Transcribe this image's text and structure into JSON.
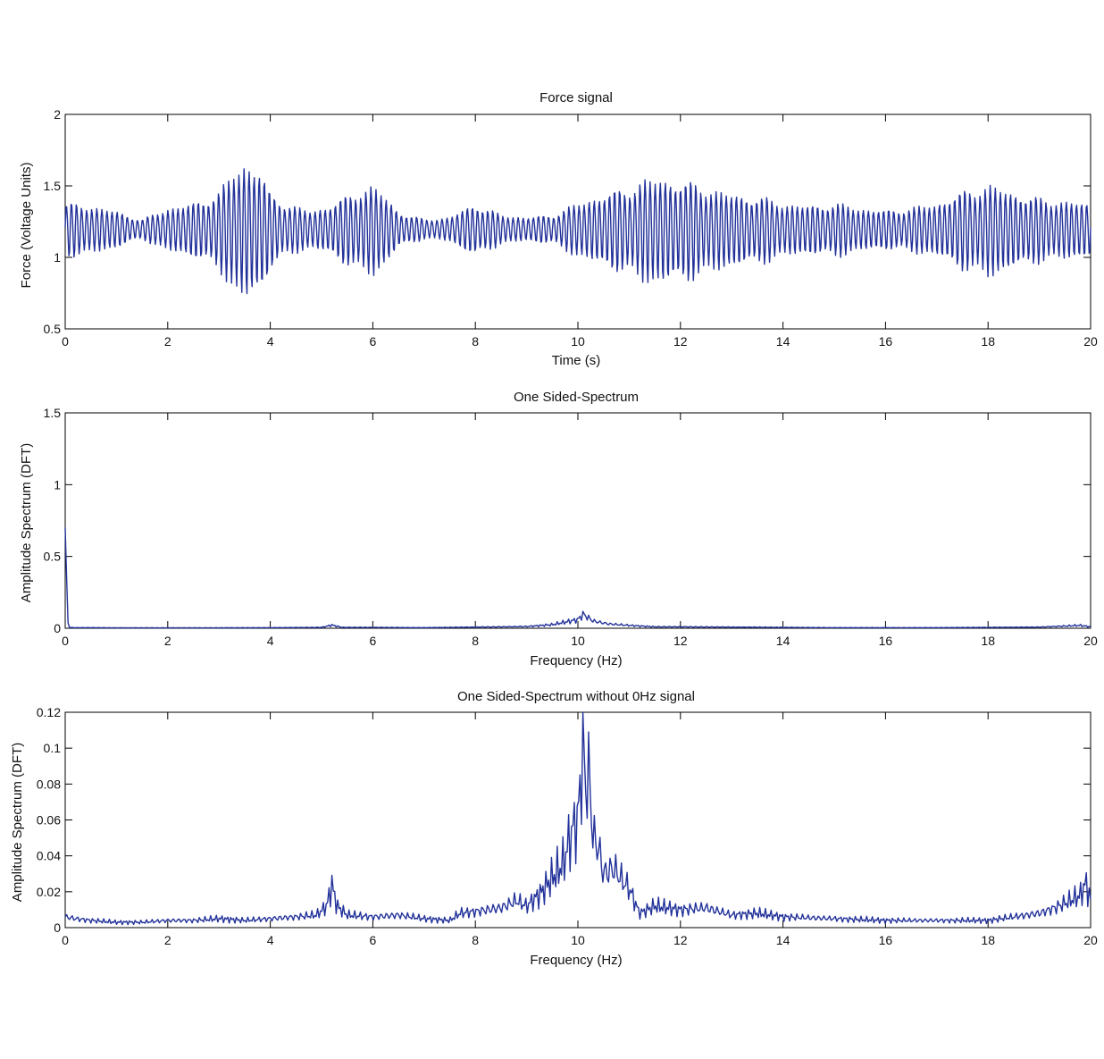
{
  "chart_data": [
    {
      "type": "line",
      "title": "Force signal",
      "xlabel": "Time (s)",
      "ylabel": "Force (Voltage Units)",
      "xlim": [
        0,
        20
      ],
      "ylim": [
        0.5,
        2
      ],
      "xticks": [
        "0",
        "2",
        "4",
        "6",
        "8",
        "10",
        "12",
        "14",
        "16",
        "18",
        "20"
      ],
      "yticks": [
        "0.5",
        "1",
        "1.5",
        "2"
      ],
      "color": "#23329a",
      "grid": false,
      "series": [
        {
          "envelope_x": [
            0,
            0.5,
            1,
            1.5,
            2,
            2.5,
            3,
            3.3,
            3.5,
            3.8,
            4,
            4.3,
            4.8,
            5,
            5.5,
            5.8,
            6,
            6.2,
            6.5,
            7,
            7.5,
            8,
            8.5,
            9,
            9.5,
            10,
            10.5,
            11,
            11.3,
            11.6,
            12,
            12.5,
            13,
            13.5,
            14,
            14.5,
            15,
            15.5,
            16,
            16.5,
            17,
            17.5,
            17.8,
            18,
            18.5,
            19,
            19.5,
            20
          ],
          "envelope_amp": [
            0.22,
            0.2,
            0.15,
            0.08,
            0.18,
            0.22,
            0.32,
            0.5,
            0.58,
            0.52,
            0.3,
            0.22,
            0.15,
            0.18,
            0.28,
            0.35,
            0.38,
            0.3,
            0.15,
            0.08,
            0.1,
            0.22,
            0.12,
            0.1,
            0.12,
            0.22,
            0.3,
            0.36,
            0.42,
            0.44,
            0.42,
            0.36,
            0.3,
            0.28,
            0.22,
            0.2,
            0.22,
            0.18,
            0.16,
            0.18,
            0.22,
            0.32,
            0.36,
            0.38,
            0.32,
            0.26,
            0.24,
            0.22
          ],
          "mean": 1.2,
          "oscillation_hz": 10.1,
          "n_points": 1400
        }
      ]
    },
    {
      "type": "line",
      "title": "One Sided-Spectrum",
      "xlabel": "Frequency (Hz)",
      "ylabel": "Amplitude Spectrum (DFT)",
      "xlim": [
        0,
        20
      ],
      "ylim": [
        0,
        1.5
      ],
      "xticks": [
        "0",
        "2",
        "4",
        "6",
        "8",
        "10",
        "12",
        "14",
        "16",
        "18",
        "20"
      ],
      "yticks": [
        "0",
        "0.5",
        "1",
        "1.5"
      ],
      "color": "#23329a",
      "grid": false,
      "series": [
        {
          "x": [
            0,
            0.03,
            0.06,
            0.1,
            0.2,
            0.5,
            1,
            2,
            3,
            4,
            5,
            5.2,
            5.4,
            6,
            7,
            8,
            9,
            9.5,
            10,
            10.1,
            10.3,
            10.6,
            11,
            11.5,
            12,
            13,
            14,
            15,
            16,
            17,
            18,
            19,
            19.8,
            20
          ],
          "y": [
            0.7,
            0.25,
            0.005,
            0.005,
            0.004,
            0.004,
            0.003,
            0.003,
            0.003,
            0.004,
            0.006,
            0.022,
            0.006,
            0.006,
            0.004,
            0.008,
            0.012,
            0.025,
            0.06,
            0.098,
            0.05,
            0.03,
            0.02,
            0.01,
            0.01,
            0.008,
            0.006,
            0.004,
            0.004,
            0.004,
            0.006,
            0.008,
            0.02,
            0.01
          ]
        }
      ]
    },
    {
      "type": "line",
      "title": "One Sided-Spectrum without 0Hz signal",
      "xlabel": "Frequency (Hz)",
      "ylabel": "Amplitude Spectrum (DFT)",
      "xlim": [
        0,
        20
      ],
      "ylim": [
        0,
        0.12
      ],
      "xticks": [
        "0",
        "2",
        "4",
        "6",
        "8",
        "10",
        "12",
        "14",
        "16",
        "18",
        "20"
      ],
      "yticks": [
        "0",
        "0.02",
        "0.04",
        "0.06",
        "0.08",
        "0.1",
        "0.12"
      ],
      "color": "#23329a",
      "grid": false,
      "series": [
        {
          "x": [
            0,
            0.2,
            0.5,
            1,
            1.5,
            2,
            2.5,
            3,
            3.5,
            4,
            4.5,
            4.9,
            5.1,
            5.2,
            5.3,
            5.5,
            6,
            6.5,
            7,
            7.5,
            7.7,
            8,
            8.5,
            8.8,
            9,
            9.3,
            9.5,
            9.7,
            9.9,
            10,
            10.05,
            10.1,
            10.15,
            10.2,
            10.3,
            10.4,
            10.5,
            10.7,
            10.9,
            11,
            11.2,
            11.5,
            12,
            12.5,
            13,
            13.5,
            14,
            15,
            16,
            17,
            18,
            18.5,
            19,
            19.3,
            19.6,
            19.8,
            19.9,
            20
          ],
          "y": [
            0.006,
            0.005,
            0.004,
            0.003,
            0.003,
            0.004,
            0.004,
            0.005,
            0.004,
            0.005,
            0.006,
            0.007,
            0.012,
            0.024,
            0.012,
            0.007,
            0.006,
            0.007,
            0.005,
            0.004,
            0.008,
            0.009,
            0.011,
            0.015,
            0.012,
            0.02,
            0.028,
            0.035,
            0.055,
            0.06,
            0.08,
            0.103,
            0.075,
            0.09,
            0.05,
            0.045,
            0.03,
            0.033,
            0.025,
            0.022,
            0.008,
            0.012,
            0.01,
            0.011,
            0.007,
            0.008,
            0.006,
            0.005,
            0.004,
            0.004,
            0.004,
            0.006,
            0.008,
            0.011,
            0.015,
            0.018,
            0.025,
            0.016
          ]
        }
      ]
    }
  ]
}
